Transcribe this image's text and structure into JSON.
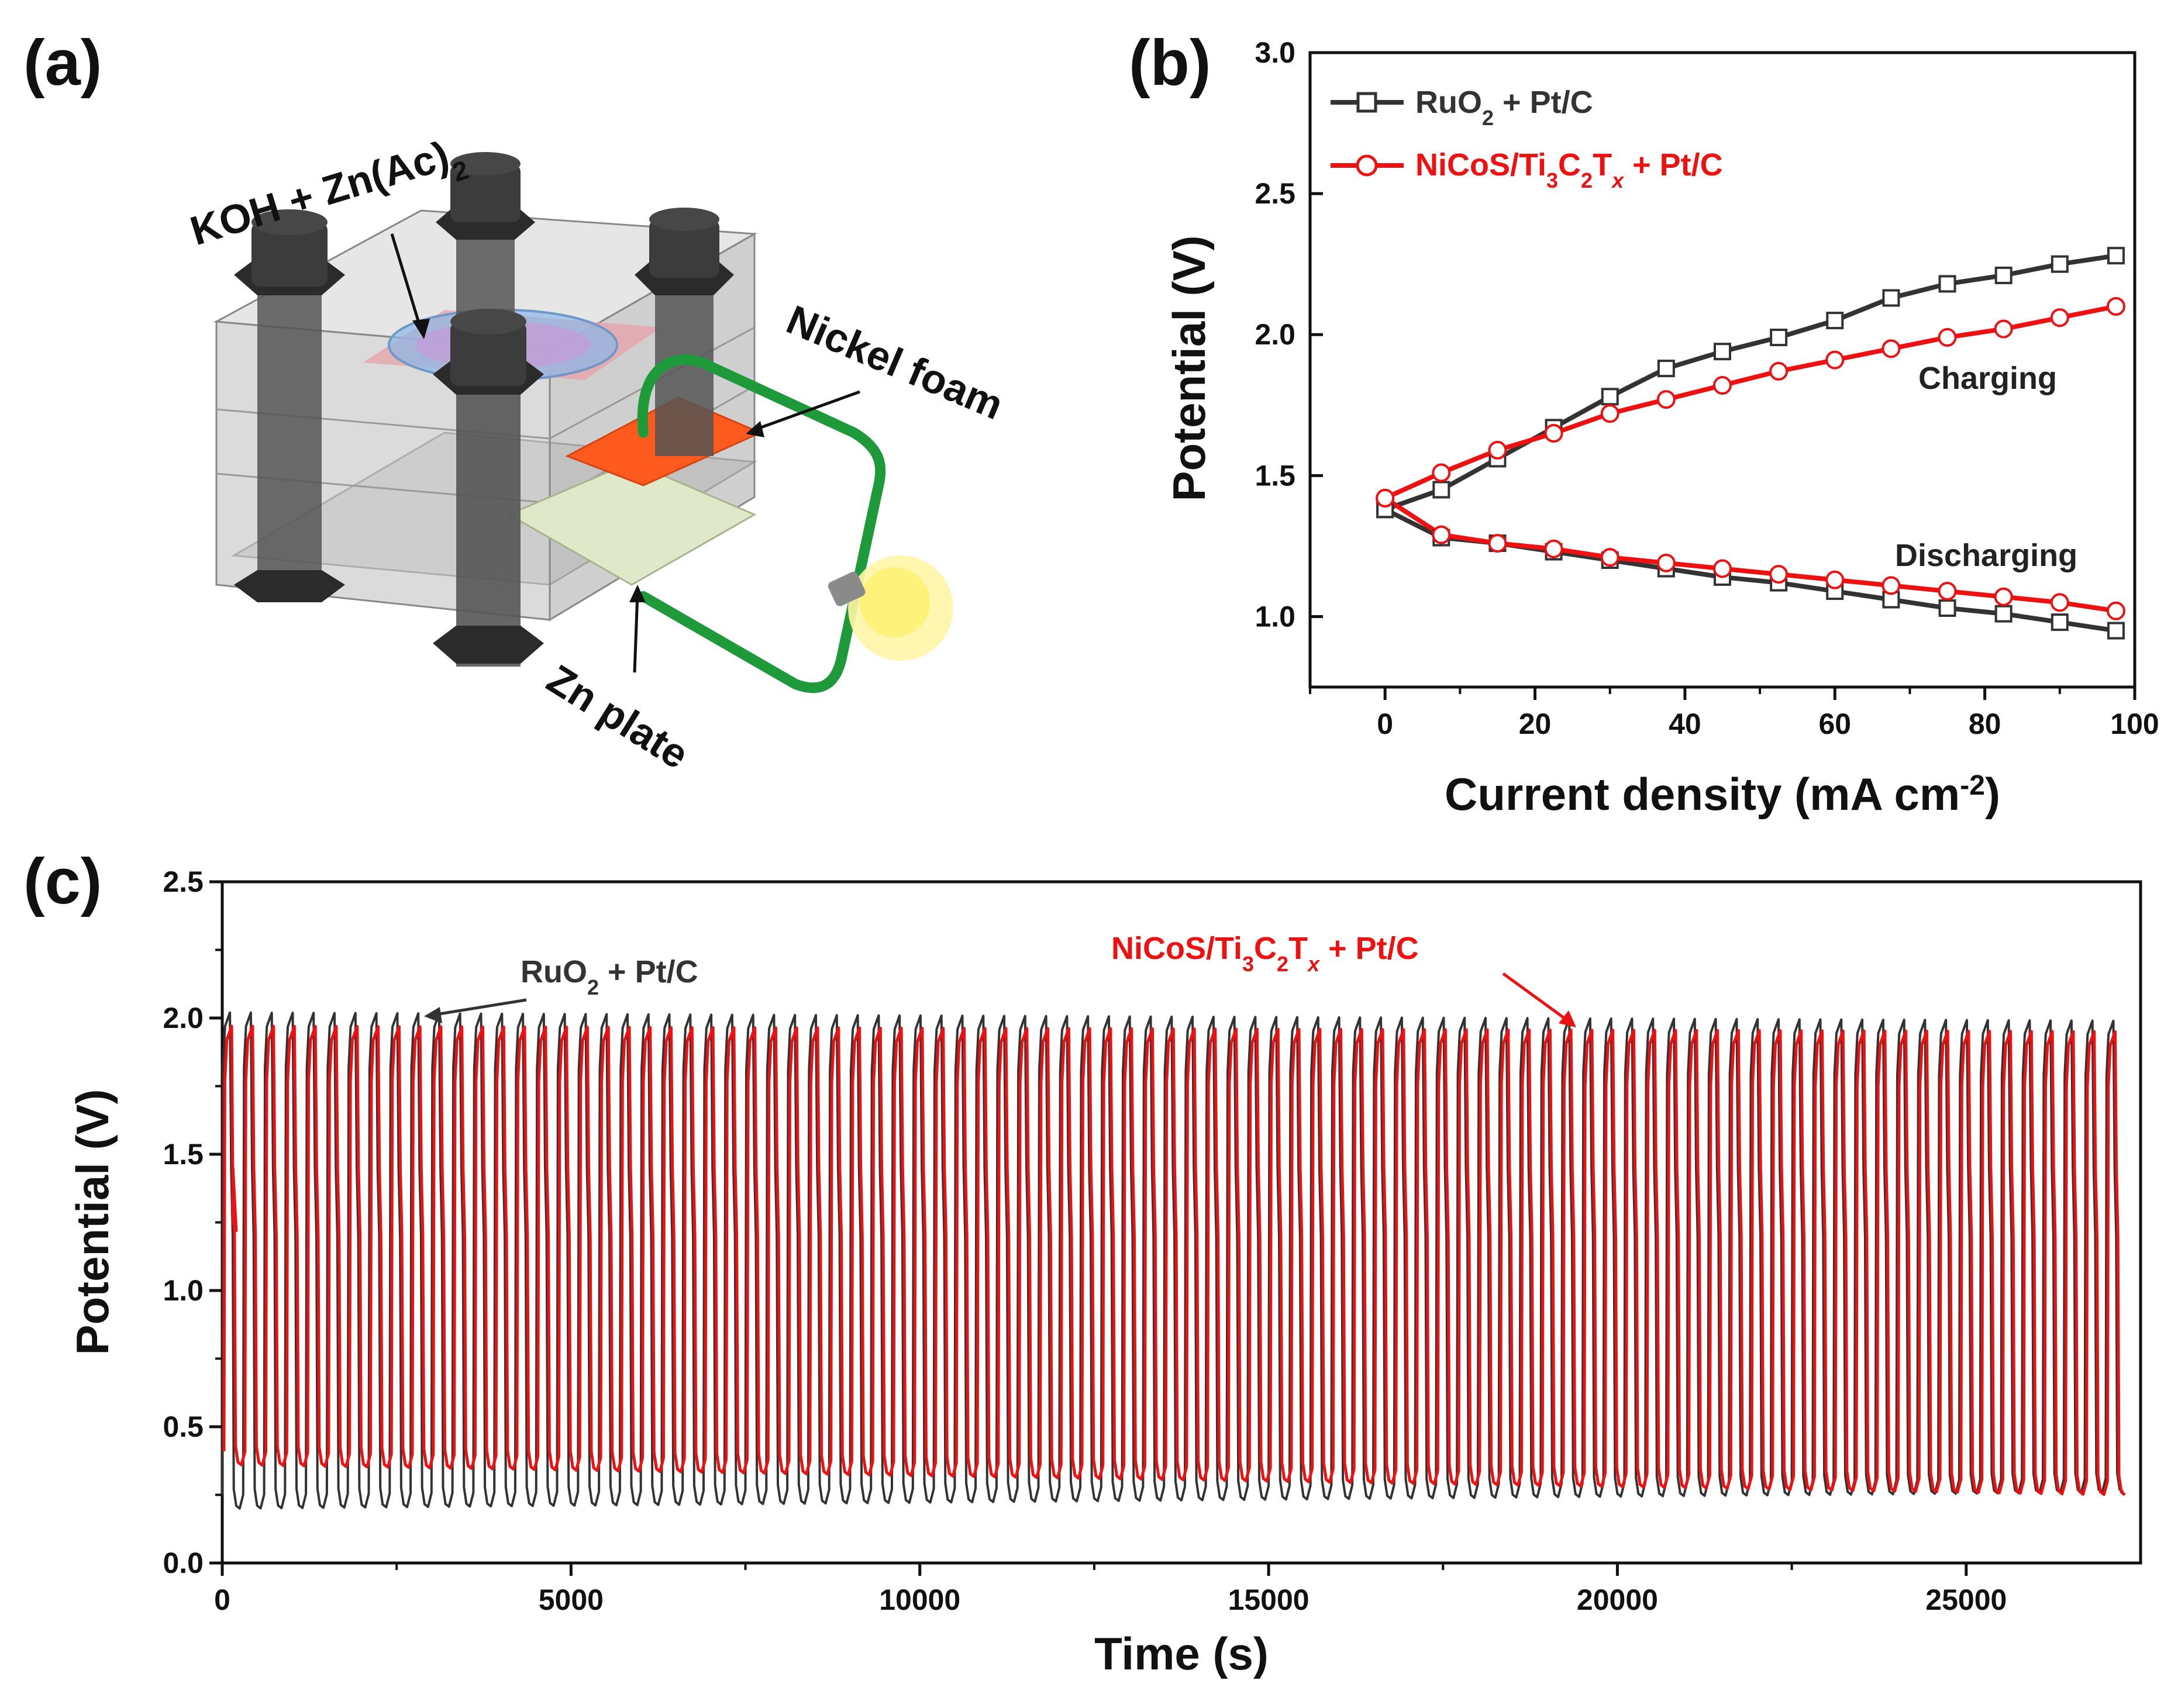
{
  "panels": {
    "a": {
      "label": "(a)",
      "labels": {
        "electrolyte": "KOH + Zn(Ac)",
        "electrolyte_sub": "2",
        "nickel_foam": "Nickel foam",
        "zn_plate": "Zn plate"
      }
    },
    "b": {
      "label": "(b)"
    },
    "c": {
      "label": "(c)"
    }
  },
  "colors": {
    "ruo2": "#333333",
    "nicos": "#ee1111"
  },
  "chart_data": [
    {
      "type": "line",
      "panel": "b",
      "xlabel_main": "Current density (mA cm",
      "xlabel_sup": "-2",
      "xlabel_end": ")",
      "ylabel": "Potential (V)",
      "xlim": [
        -10,
        100
      ],
      "ylim": [
        0.75,
        3.0
      ],
      "xticks": [
        0,
        20,
        40,
        60,
        80,
        100
      ],
      "yticks": [
        1.0,
        1.5,
        2.0,
        2.5,
        3.0
      ],
      "x": [
        0,
        7.5,
        15,
        22.5,
        30,
        37.5,
        45,
        52.5,
        60,
        67.5,
        75,
        82.5,
        90,
        97.5
      ],
      "series": [
        {
          "id": "ruo2",
          "name_parts": [
            "RuO",
            "2",
            " + Pt/C"
          ],
          "marker": "square",
          "charging": [
            1.38,
            1.45,
            1.56,
            1.67,
            1.78,
            1.88,
            1.94,
            1.99,
            2.05,
            2.13,
            2.18,
            2.21,
            2.25,
            2.28
          ],
          "discharging": [
            1.38,
            1.28,
            1.26,
            1.23,
            1.2,
            1.17,
            1.14,
            1.12,
            1.09,
            1.06,
            1.03,
            1.01,
            0.98,
            0.95
          ]
        },
        {
          "id": "nicos",
          "name_parts": [
            "NiCoS/Ti",
            "3",
            "C",
            "2",
            "T",
            "x",
            " + Pt/C"
          ],
          "marker": "circle",
          "charging": [
            1.42,
            1.51,
            1.59,
            1.65,
            1.72,
            1.77,
            1.82,
            1.87,
            1.91,
            1.95,
            1.99,
            2.02,
            2.06,
            2.1
          ],
          "discharging": [
            1.42,
            1.29,
            1.26,
            1.24,
            1.21,
            1.19,
            1.17,
            1.15,
            1.13,
            1.11,
            1.09,
            1.07,
            1.05,
            1.02
          ]
        }
      ],
      "annotations": {
        "charging": "Charging",
        "discharging": "Discharging"
      }
    },
    {
      "type": "line",
      "panel": "c",
      "xlabel": "Time (s)",
      "ylabel": "Potential (V)",
      "xlim": [
        0,
        27500
      ],
      "ylim": [
        0.0,
        2.5
      ],
      "xticks": [
        0,
        5000,
        10000,
        15000,
        20000,
        25000
      ],
      "yticks": [
        0.0,
        0.5,
        1.0,
        1.5,
        2.0,
        2.5
      ],
      "cycle_period_s": 300,
      "cycles": 91,
      "series": [
        {
          "id": "ruo2",
          "name_parts": [
            "RuO",
            "2",
            " + Pt/C"
          ],
          "charge_peak_start": 2.02,
          "charge_peak_end": 1.99,
          "discharge_start": 0.2,
          "discharge_end": 0.26
        },
        {
          "id": "nicos",
          "name_parts": [
            "NiCoS/Ti",
            "3",
            "C",
            "2",
            "T",
            "x",
            " + Pt/C"
          ],
          "charge_peak_start": 1.97,
          "charge_peak_end": 1.95,
          "discharge_start": 0.36,
          "discharge_end": 0.25
        }
      ]
    }
  ]
}
